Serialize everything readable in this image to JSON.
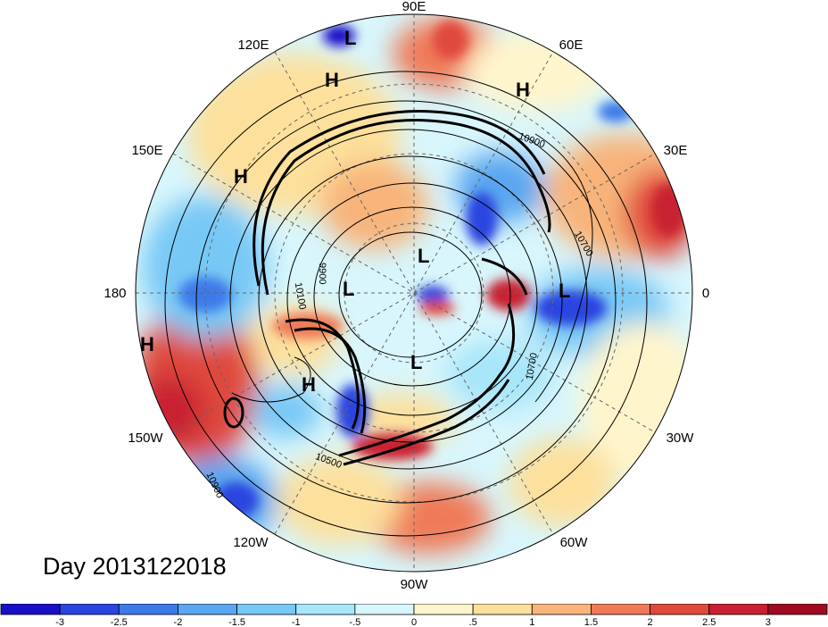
{
  "date_label": "Day 2013122018",
  "longitude_labels": {
    "lon_90e": "90E",
    "lon_120e": "120E",
    "lon_60e": "60E",
    "lon_150e": "150E",
    "lon_30e": "30E",
    "lon_180": "180",
    "lon_0": "0",
    "lon_150w": "150W",
    "lon_30w": "30W",
    "lon_120w": "120W",
    "lon_60w": "60W",
    "lon_90w": "90W"
  },
  "pressure_systems": {
    "l_top": "L",
    "h_top_left": "H",
    "h_top_right": "H",
    "h_left": "H",
    "l_center_upper": "L",
    "l_center_left": "L",
    "l_right": "L",
    "h_far_left": "H",
    "l_center_lower": "L",
    "h_lower_left": "H"
  },
  "contour_labels": {
    "c_10900_top": "10900",
    "c_10700_right": "10700",
    "c_9900": "9900",
    "c_10100": "10100",
    "c_10700_lower": "10700",
    "c_10500": "10500",
    "c_10900_bottom": "10900"
  },
  "colorbar": {
    "tick_labels": [
      "-3",
      "-2.5",
      "-2",
      "-1.5",
      "-1",
      "-.5",
      "0",
      ".5",
      "1",
      "1.5",
      "2",
      "2.5",
      "3"
    ],
    "colors": [
      "#1a0fc8",
      "#2a44e0",
      "#3c7ae8",
      "#5aa6f0",
      "#78c8f6",
      "#a8e6fa",
      "#d8f6fc",
      "#fff5cc",
      "#fde09c",
      "#f8b47a",
      "#ef7a58",
      "#e04a3c",
      "#c82030",
      "#a00a20"
    ]
  }
}
